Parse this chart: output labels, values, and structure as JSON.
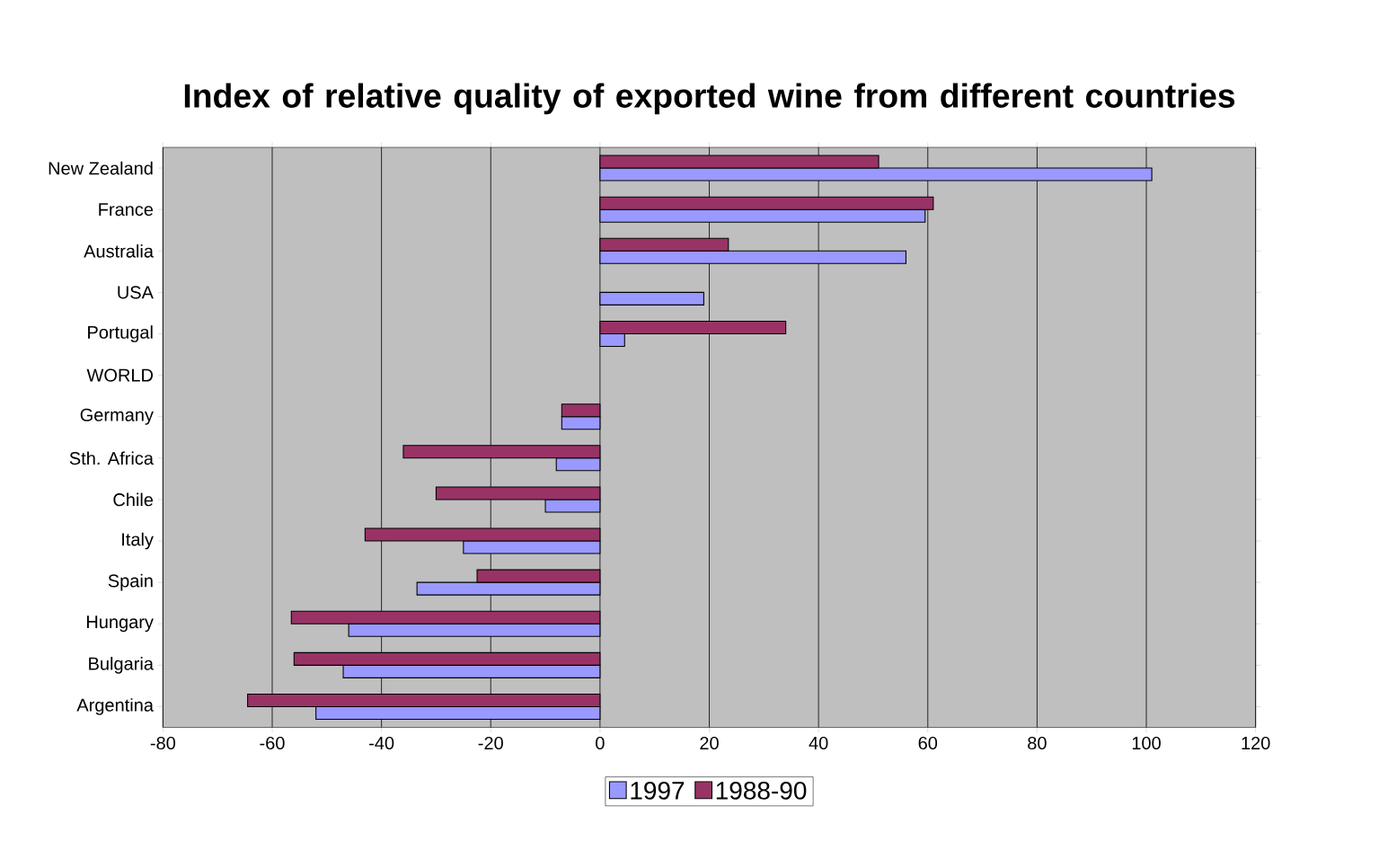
{
  "chart_data": {
    "type": "bar",
    "orientation": "horizontal",
    "title": "Index of relative quality of exported wine from different countries",
    "categories": [
      "New Zealand",
      "France",
      "Australia",
      "USA",
      "Portugal",
      "WORLD",
      "Germany",
      "Sth. Africa",
      "Chile",
      "Italy",
      "Spain",
      "Hungary",
      "Bulgaria",
      "Argentina"
    ],
    "series": [
      {
        "name": "1997",
        "color": "#9999ff",
        "values": [
          101,
          59.5,
          56,
          19,
          4.5,
          0,
          -7,
          -8,
          -10,
          -25,
          -33.5,
          -46,
          -47,
          -52
        ]
      },
      {
        "name": "1988-90",
        "color": "#993366",
        "values": [
          51,
          61,
          23.5,
          0,
          34,
          0,
          -7,
          -36,
          -30,
          -43,
          -22.5,
          -56.5,
          -56,
          -64.5
        ]
      }
    ],
    "xlim": [
      -80,
      120
    ],
    "xticks": [
      -80,
      -60,
      -40,
      -20,
      0,
      20,
      40,
      60,
      80,
      100,
      120
    ],
    "grid": "x",
    "legend": "bottom"
  }
}
